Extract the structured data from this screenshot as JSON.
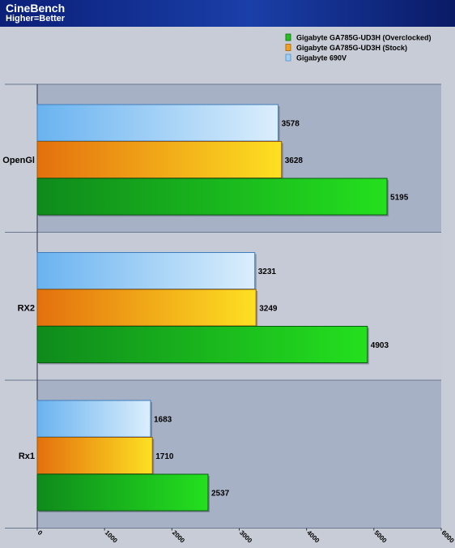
{
  "header": {
    "title": "CineBench",
    "subtitle": "Higher=Better"
  },
  "colors": {
    "header_bg": "#1a3fa8",
    "plot_band_dark": "#a7b1c5",
    "plot_band_light": "#c6cad6",
    "gridline": "#6a7890"
  },
  "chart_data": {
    "type": "bar",
    "orientation": "horizontal",
    "title": "CineBench",
    "subtitle": "Higher=Better",
    "categories": [
      "OpenGl",
      "RX2",
      "Rx1"
    ],
    "series": [
      {
        "name": "Gigabyte GA785G-UD3H (Overclocked)",
        "values": [
          5195,
          4903,
          2537
        ],
        "color": "#22c31c"
      },
      {
        "name": "Gigabyte GA785G-UD3H (Stock)",
        "values": [
          3628,
          3249,
          1710
        ],
        "color": "#f2a21a"
      },
      {
        "name": "Gigabyte 690V",
        "values": [
          3578,
          3231,
          1683
        ],
        "color": "#9fd0f4"
      }
    ],
    "xlim": [
      0,
      6000
    ],
    "xticks": [
      0,
      1000,
      2000,
      3000,
      4000,
      5000,
      6000
    ],
    "legend_position": "top-right",
    "grid": true
  }
}
